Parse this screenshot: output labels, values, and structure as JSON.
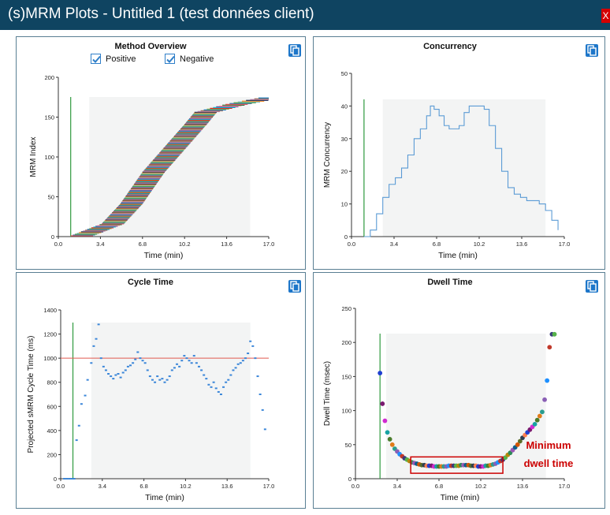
{
  "window": {
    "title": "(s)MRM Plots - Untitled 1 (test données client)",
    "close_label": "X"
  },
  "colors": {
    "titlebar": "#0f4461",
    "panel_border": "#5a7f93",
    "line_blue": "#5b9bd5",
    "threshold": "#e05a4f",
    "start_marker": "#2e9a3e",
    "highlight": "#cc0000"
  },
  "legend": {
    "positive_label": "Positive",
    "negative_label": "Negative",
    "positive_checked": true,
    "negative_checked": true
  },
  "panels": {
    "method_overview": {
      "title": "Method Overview"
    },
    "concurrency": {
      "title": "Concurrency"
    },
    "cycle_time": {
      "title": "Cycle Time"
    },
    "dwell_time": {
      "title": "Dwell Time",
      "annotation_line1": "Minimum",
      "annotation_line2": "dwell time"
    }
  },
  "chart_data": [
    {
      "type": "bar",
      "title": "Method Overview",
      "xlabel": "Time (min)",
      "ylabel": "MRM Index",
      "xlim": [
        0,
        17.0
      ],
      "ylim": [
        0,
        200
      ],
      "xticks": [
        "0.0",
        "3.4",
        "6.8",
        "10.2",
        "13.6",
        "17.0"
      ],
      "yticks": [
        "0",
        "50",
        "100",
        "150",
        "200"
      ],
      "shaded_region": [
        2.5,
        15.5
      ],
      "start_marker_x": 1.0,
      "bar_count": 174,
      "index_start_times": [
        [
          1.0,
          0
        ],
        [
          3.5,
          15
        ],
        [
          5.0,
          40
        ],
        [
          6.8,
          80
        ],
        [
          8.5,
          110
        ],
        [
          10.2,
          140
        ],
        [
          11.0,
          155
        ],
        [
          13.5,
          165
        ],
        [
          16.5,
          174
        ]
      ],
      "window_width_min": 1.8
    },
    {
      "type": "line",
      "title": "Concurrency",
      "xlabel": "Time (min)",
      "ylabel": "MRM Concurrency",
      "xlim": [
        0,
        17.0
      ],
      "ylim": [
        0,
        50
      ],
      "xticks": [
        "0.0",
        "3.4",
        "6.8",
        "10.2",
        "13.6",
        "17.0"
      ],
      "yticks": [
        "0",
        "10",
        "20",
        "30",
        "40",
        "50"
      ],
      "shaded_region": [
        2.5,
        15.5
      ],
      "start_marker_x": 1.0,
      "x": [
        1.0,
        1.5,
        2.0,
        2.5,
        3.0,
        3.5,
        4.0,
        4.5,
        5.0,
        5.5,
        6.0,
        6.3,
        6.6,
        7.0,
        7.4,
        7.8,
        8.2,
        8.6,
        9.0,
        9.4,
        9.8,
        10.2,
        10.6,
        11.0,
        11.5,
        12.0,
        12.5,
        13.0,
        13.5,
        14.0,
        14.5,
        15.0,
        15.5,
        16.0,
        16.5
      ],
      "y": [
        0,
        2,
        7,
        12,
        16,
        18,
        21,
        25,
        30,
        33,
        37,
        40,
        39,
        37,
        34,
        33,
        33,
        34,
        38,
        40,
        40,
        40,
        39,
        34,
        27,
        20,
        15,
        13,
        12,
        11,
        11,
        10,
        8,
        5,
        2
      ]
    },
    {
      "type": "scatter",
      "title": "Cycle Time",
      "xlabel": "Time (min)",
      "ylabel": "Projected sMRM  Cycle Time (ms)",
      "xlim": [
        0,
        17.0
      ],
      "ylim": [
        0,
        1400
      ],
      "xticks": [
        "0.0",
        "3.4",
        "6.8",
        "10.2",
        "13.6",
        "17.0"
      ],
      "yticks": [
        "0",
        "200",
        "400",
        "600",
        "800",
        "1000",
        "1200",
        "1400"
      ],
      "shaded_region": [
        2.5,
        15.5
      ],
      "start_marker_x": 1.0,
      "threshold": 1000,
      "x": [
        0.3,
        0.5,
        0.7,
        0.9,
        1.1,
        1.3,
        1.5,
        1.7,
        2.0,
        2.2,
        2.5,
        2.7,
        2.9,
        3.1,
        3.3,
        3.5,
        3.7,
        3.9,
        4.1,
        4.3,
        4.5,
        4.7,
        4.9,
        5.1,
        5.3,
        5.5,
        5.7,
        5.9,
        6.1,
        6.3,
        6.5,
        6.7,
        6.9,
        7.1,
        7.3,
        7.5,
        7.7,
        7.9,
        8.1,
        8.3,
        8.5,
        8.7,
        8.9,
        9.1,
        9.3,
        9.5,
        9.7,
        9.9,
        10.1,
        10.3,
        10.5,
        10.7,
        10.9,
        11.1,
        11.3,
        11.5,
        11.7,
        11.9,
        12.1,
        12.3,
        12.5,
        12.7,
        12.9,
        13.1,
        13.3,
        13.5,
        13.7,
        13.9,
        14.1,
        14.3,
        14.5,
        14.7,
        14.9,
        15.1,
        15.3,
        15.5,
        15.7,
        15.9,
        16.1,
        16.3,
        16.5,
        16.7
      ],
      "y": [
        0,
        0,
        0,
        0,
        0,
        320,
        440,
        620,
        690,
        820,
        960,
        1100,
        1160,
        1280,
        1000,
        930,
        900,
        870,
        850,
        830,
        860,
        870,
        840,
        880,
        900,
        930,
        940,
        960,
        990,
        1050,
        1000,
        980,
        960,
        900,
        850,
        820,
        800,
        850,
        820,
        830,
        800,
        820,
        850,
        900,
        920,
        950,
        930,
        980,
        1020,
        1000,
        980,
        960,
        1020,
        960,
        930,
        900,
        860,
        830,
        780,
        760,
        800,
        750,
        720,
        700,
        760,
        800,
        820,
        860,
        900,
        920,
        950,
        960,
        980,
        1000,
        1040,
        1140,
        1100,
        1000,
        850,
        700,
        570,
        410
      ]
    },
    {
      "type": "scatter",
      "title": "Dwell Time",
      "xlabel": "Time (min)",
      "ylabel": "Dwell Time (msec)",
      "xlim": [
        0,
        17.0
      ],
      "ylim": [
        0,
        250
      ],
      "xticks": [
        "0.0",
        "3.4",
        "6.8",
        "10.2",
        "13.6",
        "17.0"
      ],
      "yticks": [
        "0",
        "50",
        "100",
        "150",
        "200",
        "250"
      ],
      "shaded_region": [
        2.5,
        15.5
      ],
      "start_marker_x": 2.0,
      "annotations": [
        "Minimum",
        "dwell time"
      ],
      "highlight_box_x": [
        4.5,
        12.0
      ],
      "highlight_box_y": [
        8,
        32
      ],
      "x": [
        2.0,
        2.2,
        2.4,
        2.6,
        2.8,
        3.0,
        3.2,
        3.4,
        3.6,
        3.8,
        4.0,
        4.2,
        4.4,
        4.6,
        4.8,
        5.0,
        5.2,
        5.4,
        5.6,
        5.8,
        6.0,
        6.2,
        6.4,
        6.6,
        6.8,
        7.0,
        7.2,
        7.4,
        7.6,
        7.8,
        8.0,
        8.2,
        8.4,
        8.6,
        8.8,
        9.0,
        9.2,
        9.4,
        9.6,
        9.8,
        10.0,
        10.2,
        10.4,
        10.6,
        10.8,
        11.0,
        11.2,
        11.4,
        11.6,
        11.8,
        12.0,
        12.2,
        12.4,
        12.6,
        12.8,
        13.0,
        13.2,
        13.4,
        13.6,
        13.8,
        14.0,
        14.2,
        14.4,
        14.6,
        14.8,
        15.0,
        15.2,
        15.4,
        15.6,
        15.8,
        16.0,
        16.2
      ],
      "y": [
        155,
        110,
        85,
        68,
        58,
        50,
        44,
        40,
        36,
        33,
        30,
        28,
        26,
        24,
        23,
        22,
        21,
        20,
        20,
        19,
        19,
        19,
        18,
        18,
        18,
        18,
        18,
        18,
        19,
        19,
        19,
        19,
        19,
        20,
        20,
        20,
        20,
        19,
        19,
        19,
        18,
        18,
        18,
        19,
        19,
        20,
        21,
        22,
        24,
        26,
        28,
        31,
        35,
        38,
        42,
        46,
        50,
        55,
        60,
        64,
        68,
        72,
        76,
        80,
        86,
        92,
        98,
        116,
        144,
        193,
        212,
        212
      ]
    }
  ]
}
